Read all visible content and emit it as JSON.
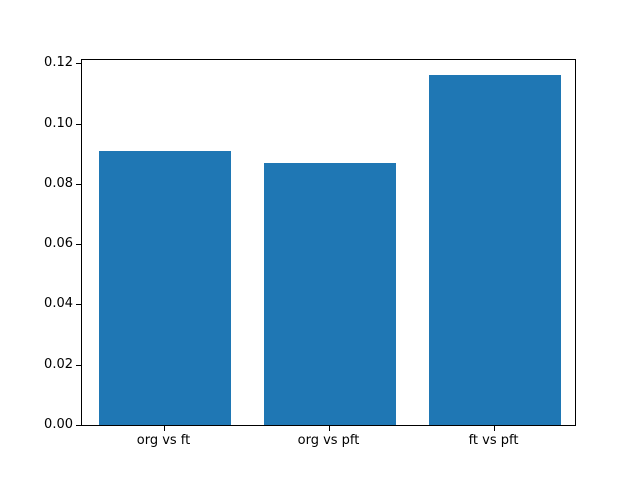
{
  "figure": {
    "background": "#ffffff"
  },
  "chart_data": {
    "type": "bar",
    "title": "",
    "xlabel": "",
    "ylabel": "",
    "categories": [
      "org vs ft",
      "org vs pft",
      "ft vs pft"
    ],
    "values": [
      0.091,
      0.087,
      0.116
    ],
    "ylim": [
      0,
      0.1218
    ],
    "yticks": [
      0.0,
      0.02,
      0.04,
      0.06,
      0.08,
      0.1,
      0.12
    ],
    "ytick_labels": [
      "0.00",
      "0.02",
      "0.04",
      "0.06",
      "0.08",
      "0.10",
      "0.12"
    ],
    "bar_color": "#1f77b4",
    "bar_width_frac": 0.8,
    "grid": false,
    "legend": null
  }
}
